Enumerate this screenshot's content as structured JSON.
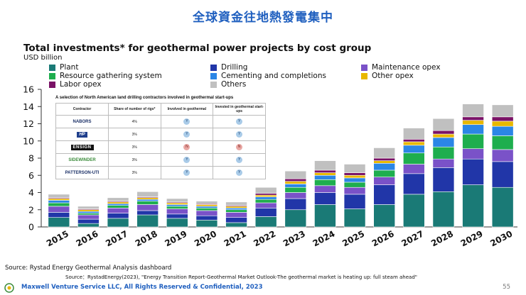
{
  "slide_title": "全球資金往地熱發電集中",
  "colors": {
    "plant": "#1a7a76",
    "drilling": "#2136a8",
    "maintenance_opex": "#7a52c8",
    "resource_gathering": "#1eae4e",
    "cementing": "#2b86e6",
    "other_opex": "#e8b800",
    "labor_opex": "#7a1266",
    "others": "#c0c0c0"
  },
  "chart_data": {
    "type": "bar",
    "stacked": true,
    "title": "Total investments* for geothermal power projects by cost group",
    "ylabel": "USD billion",
    "ylim": [
      0,
      16
    ],
    "yticks": [
      "0",
      "2",
      "4",
      "6",
      "8",
      "10",
      "12",
      "14",
      "16"
    ],
    "grid": false,
    "legend_position": "top",
    "categories": [
      "2015",
      "2016",
      "2017",
      "2018",
      "2019",
      "2020",
      "2021",
      "2022",
      "2023",
      "2024",
      "2025",
      "2026",
      "2027",
      "2028",
      "2029",
      "2030"
    ],
    "series": [
      {
        "name": "Plant",
        "key": "plant",
        "values": [
          1.1,
          0.4,
          1.0,
          1.4,
          1.0,
          0.8,
          0.5,
          1.2,
          2.0,
          2.6,
          2.1,
          2.6,
          3.8,
          4.1,
          4.9,
          4.6
        ]
      },
      {
        "name": "Drilling",
        "key": "drilling",
        "values": [
          0.6,
          0.5,
          0.6,
          0.5,
          0.5,
          0.5,
          0.6,
          1.0,
          1.3,
          1.4,
          1.7,
          2.3,
          2.4,
          2.8,
          3.0,
          3.0
        ]
      },
      {
        "name": "Maintenance opex",
        "key": "maintenance_opex",
        "values": [
          0.7,
          0.5,
          0.6,
          0.7,
          0.6,
          0.6,
          0.6,
          0.6,
          0.7,
          0.8,
          0.8,
          0.9,
          1.1,
          1.0,
          1.2,
          1.4
        ]
      },
      {
        "name": "Resource gathering system",
        "key": "resource_gathering",
        "values": [
          0.4,
          0.2,
          0.3,
          0.4,
          0.3,
          0.3,
          0.3,
          0.4,
          0.6,
          0.7,
          0.6,
          0.8,
          1.3,
          1.4,
          1.7,
          1.6
        ]
      },
      {
        "name": "Cementing and completions",
        "key": "cementing",
        "values": [
          0.3,
          0.2,
          0.2,
          0.2,
          0.2,
          0.2,
          0.2,
          0.3,
          0.4,
          0.5,
          0.5,
          0.8,
          0.9,
          1.1,
          1.1,
          1.1
        ]
      },
      {
        "name": "Other opex",
        "key": "other_opex",
        "values": [
          0.2,
          0.2,
          0.2,
          0.2,
          0.2,
          0.2,
          0.2,
          0.2,
          0.3,
          0.3,
          0.3,
          0.3,
          0.4,
          0.4,
          0.5,
          0.6
        ]
      },
      {
        "name": "Labor opex",
        "key": "labor_opex",
        "values": [
          0.1,
          0.1,
          0.1,
          0.1,
          0.1,
          0.1,
          0.1,
          0.2,
          0.3,
          0.3,
          0.3,
          0.3,
          0.3,
          0.4,
          0.4,
          0.5
        ]
      },
      {
        "name": "Others",
        "key": "others",
        "values": [
          0.4,
          0.3,
          0.4,
          0.6,
          0.4,
          0.3,
          0.4,
          0.7,
          0.9,
          1.1,
          1.0,
          1.2,
          1.3,
          1.4,
          1.5,
          1.4
        ]
      }
    ]
  },
  "legend_layout": [
    {
      "key": "plant",
      "label": "Plant"
    },
    {
      "key": "drilling",
      "label": "Drilling"
    },
    {
      "key": "maintenance_opex",
      "label": "Maintenance opex"
    },
    {
      "key": "resource_gathering",
      "label": "Resource gathering system"
    },
    {
      "key": "cementing",
      "label": "Cementing and completions"
    },
    {
      "key": "other_opex",
      "label": "Other opex"
    },
    {
      "key": "labor_opex",
      "label": "Labor opex"
    },
    {
      "key": "others",
      "label": "Others"
    }
  ],
  "inset": {
    "title": "A selection of North American land drilling contractors involved in geothermal start-ups",
    "headers": [
      "Contractor",
      "Share of number of rigs*",
      "Involved in geothermal",
      "Invested in geothermal start-ups"
    ],
    "rows": [
      {
        "contractor": "NABORS",
        "logo": "nabors-logo",
        "share": "4%",
        "involved": "Y",
        "invested": "Y"
      },
      {
        "contractor": "HP",
        "logo": "hp-logo",
        "share": "3%",
        "involved": "Y",
        "invested": "Y"
      },
      {
        "contractor": "ENSIGN",
        "logo": "ensign-logo",
        "share": "3%",
        "involved": "N",
        "invested": "N"
      },
      {
        "contractor": "SIDEWINDER",
        "logo": "sidewinder-logo",
        "share": "3%",
        "involved": "Y",
        "invested": "Y"
      },
      {
        "contractor": "PATTERSON-UTI",
        "logo": "patterson-logo",
        "share": "3%",
        "involved": "Y",
        "invested": "Y"
      }
    ]
  },
  "source_line": "Source: Rystad Energy Geothermal Analysis dashboard",
  "source_full": "Source：RystadEnergy(2023), \"Energy Transition Report-Geothermal Market Outlook-The geothermal market is heating up: full steam ahead\"",
  "footer": "Maxwell Venture Service LLC, All Rights Reserved & Confidential, 2023",
  "page_number": "55"
}
